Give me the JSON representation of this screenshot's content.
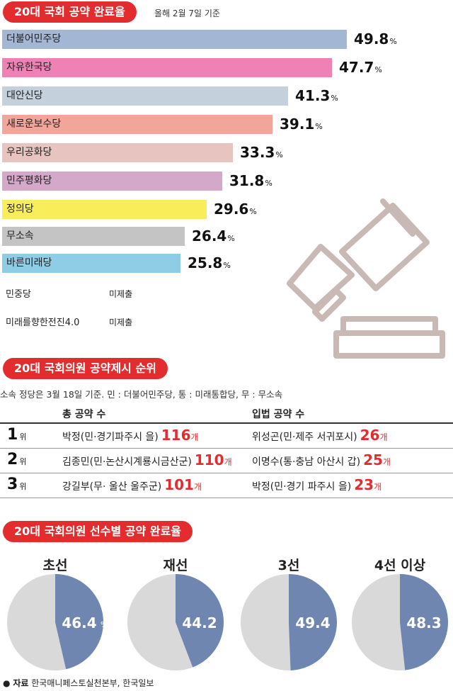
{
  "section1": {
    "title": "20대 국회 공약 완료율",
    "note": "올해 2월 7일 기준",
    "pct_unit": "%",
    "extra_rows": [
      {
        "label": "민중당",
        "status": "미제출"
      },
      {
        "label": "미래를향한전진4.0",
        "status": "미제출"
      }
    ]
  },
  "section2": {
    "title": "20대 국회의원 공약제시 순위",
    "note": "소속 정당은 3월 18일 기준. 민 : 더불어민주당, 통 : 미래통합당, 무 : 무소속",
    "col_total": "총 공약 수",
    "col_legis": "입법 공약 수",
    "rank_suffix": "위",
    "count_suffix": "개",
    "rows": [
      {
        "rank": "1",
        "total_name": "박정(민·경기파주시 을)",
        "total_count": "116",
        "legis_name": "위성곤(민·제주 서귀포시)",
        "legis_count": "26"
      },
      {
        "rank": "2",
        "total_name": "김종민(민·논산시계룡시금산군)",
        "total_count": "110",
        "legis_name": "이명수(통·충남 아산시 갑)",
        "legis_count": "25"
      },
      {
        "rank": "3",
        "total_name": "강길부(무· 울산 울주군)",
        "total_count": "101",
        "legis_name": "박정(민·경기 파주시 을)",
        "legis_count": "23"
      }
    ]
  },
  "section3": {
    "title": "20대 국회의원 선수별 공약 완료율",
    "pct_unit": "%"
  },
  "source": {
    "label": "자료",
    "text": "한국매니페스토실천본부, 한국일보"
  },
  "colors": {
    "accent": "#e32c2e",
    "pie_fill": "#6f86b0",
    "pie_rest": "#d9d9d9",
    "gavel": "#c9b9b5"
  },
  "chart_data": [
    {
      "type": "bar",
      "title": "20대 국회 공약 완료율",
      "categories": [
        "더불어민주당",
        "자유한국당",
        "대안신당",
        "새로운보수당",
        "우리공화당",
        "민주평화당",
        "정의당",
        "무소속",
        "바른미래당"
      ],
      "values": [
        49.8,
        47.7,
        41.3,
        39.1,
        33.3,
        31.8,
        29.6,
        26.4,
        25.8
      ],
      "colors": [
        "#a3b6d3",
        "#ee82b5",
        "#c5d0dd",
        "#f2a69a",
        "#e7c4c0",
        "#d4a8c9",
        "#f7ee5a",
        "#c4c4c4",
        "#8fcde7"
      ],
      "xlim": [
        0,
        65
      ]
    },
    {
      "type": "pie",
      "title": "20대 국회의원 선수별 공약 완료율",
      "categories": [
        "초선",
        "재선",
        "3선",
        "4선 이상"
      ],
      "values": [
        46.4,
        44.2,
        49.4,
        48.3
      ]
    }
  ]
}
